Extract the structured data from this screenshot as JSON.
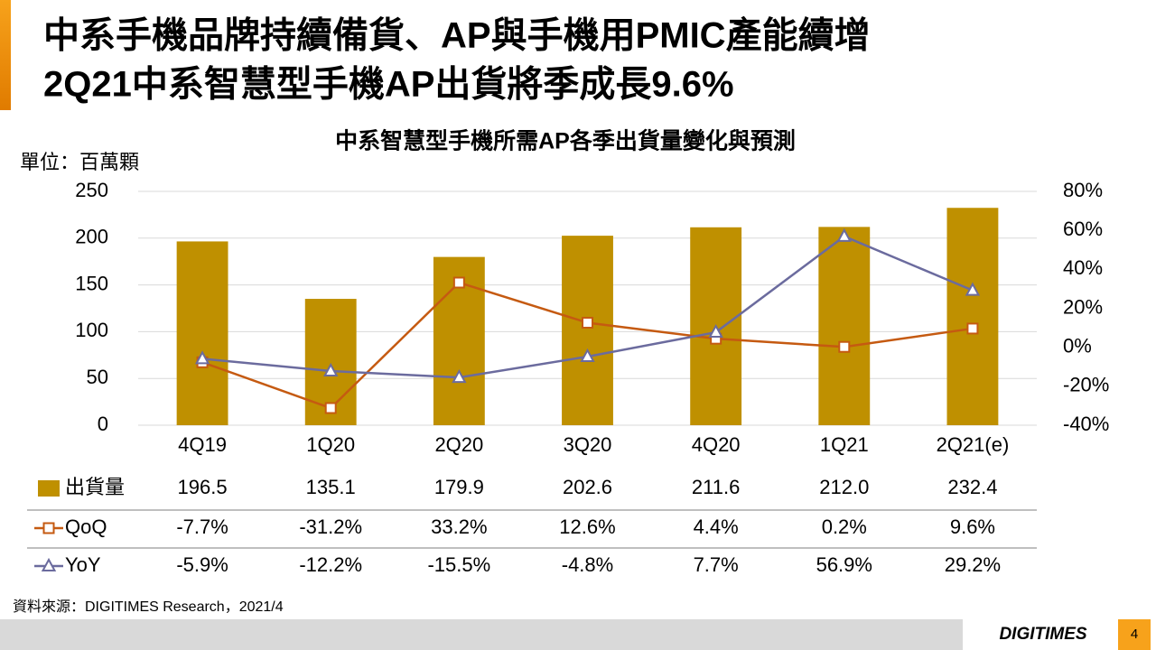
{
  "slide": {
    "title": [
      "中系手機品牌持續備貨、AP與手機用PMIC產能續增",
      "2Q21中系智慧型手機AP出貨將季成長9.6%"
    ],
    "source": "資料來源：DIGITIMES Research，2021/4",
    "brand": "DIGITIMES",
    "page": 4
  },
  "chart_data": {
    "type": "bar",
    "title": "中系智慧型手機所需AP各季出貨量變化與預測",
    "y_label": "單位：百萬顆",
    "categories": [
      "4Q19",
      "1Q20",
      "2Q20",
      "3Q20",
      "4Q20",
      "1Q21",
      "2Q21(e)"
    ],
    "series": [
      {
        "name": "出貨量",
        "type": "bar",
        "color": "#bf9000",
        "values": [
          196.5,
          135.1,
          179.9,
          202.6,
          211.6,
          212.0,
          232.4
        ],
        "value_labels": [
          "196.5",
          "135.1",
          "179.9",
          "202.6",
          "211.6",
          "212.0",
          "232.4"
        ]
      },
      {
        "name": "QoQ",
        "type": "line",
        "axis": "y2",
        "marker": "square",
        "color": "#c55a11",
        "values": [
          -7.7,
          -31.2,
          33.2,
          12.6,
          4.4,
          0.2,
          9.6
        ],
        "value_labels": [
          "-7.7%",
          "-31.2%",
          "33.2%",
          "12.6%",
          "4.4%",
          "0.2%",
          "9.6%"
        ]
      },
      {
        "name": "YoY",
        "type": "line",
        "axis": "y2",
        "marker": "triangle",
        "color": "#6b6b9e",
        "values": [
          -5.9,
          -12.2,
          -15.5,
          -4.8,
          7.7,
          56.9,
          29.2
        ],
        "value_labels": [
          "-5.9%",
          "-12.2%",
          "-15.5%",
          "-4.8%",
          "7.7%",
          "56.9%",
          "29.2%"
        ]
      }
    ],
    "ylim": [
      0,
      250
    ],
    "yticks": [
      0,
      50,
      100,
      150,
      200,
      250
    ],
    "y2lim": [
      -40,
      80
    ],
    "y2ticks": [
      {
        "value": -40,
        "label": "-40%"
      },
      {
        "value": -20,
        "label": "-20%"
      },
      {
        "value": 0,
        "label": "0%"
      },
      {
        "value": 20,
        "label": "20%"
      },
      {
        "value": 40,
        "label": "40%"
      },
      {
        "value": 60,
        "label": "60%"
      },
      {
        "value": 80,
        "label": "80%"
      }
    ],
    "grid": true,
    "data_table": true
  }
}
